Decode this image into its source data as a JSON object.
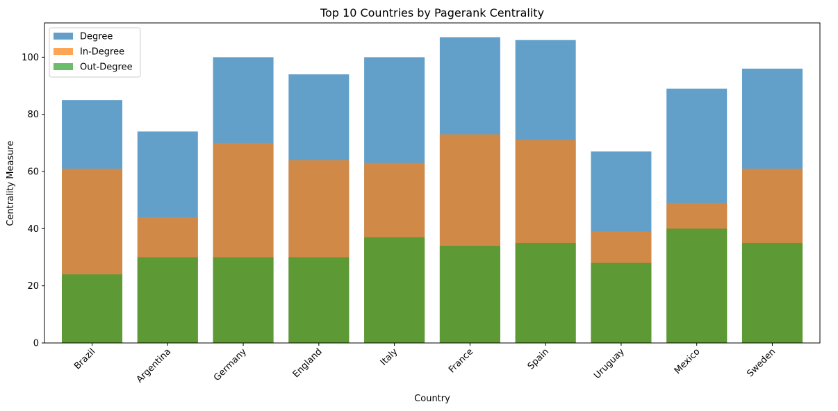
{
  "chart_data": {
    "type": "bar",
    "title": "Top 10 Countries by Pagerank Centrality",
    "xlabel": "Country",
    "ylabel": "Centrality Measure",
    "ylim": [
      0,
      112
    ],
    "yticks": [
      0,
      20,
      40,
      60,
      80,
      100
    ],
    "categories": [
      "Brazil",
      "Argentina",
      "Germany",
      "England",
      "Italy",
      "France",
      "Spain",
      "Uruguay",
      "Mexico",
      "Sweden"
    ],
    "series": [
      {
        "name": "Degree",
        "color": "#1f77b4",
        "values": [
          85,
          74,
          100,
          94,
          100,
          107,
          106,
          67,
          89,
          96
        ]
      },
      {
        "name": "In-Degree",
        "color": "#ff7f0e",
        "values": [
          61,
          44,
          70,
          64,
          63,
          73,
          71,
          39,
          49,
          61
        ]
      },
      {
        "name": "Out-Degree",
        "color": "#2ca02c",
        "values": [
          24,
          30,
          30,
          30,
          37,
          34,
          35,
          28,
          40,
          35
        ]
      }
    ],
    "opacity": 0.7,
    "grid": false,
    "legend_position": "top-left"
  }
}
